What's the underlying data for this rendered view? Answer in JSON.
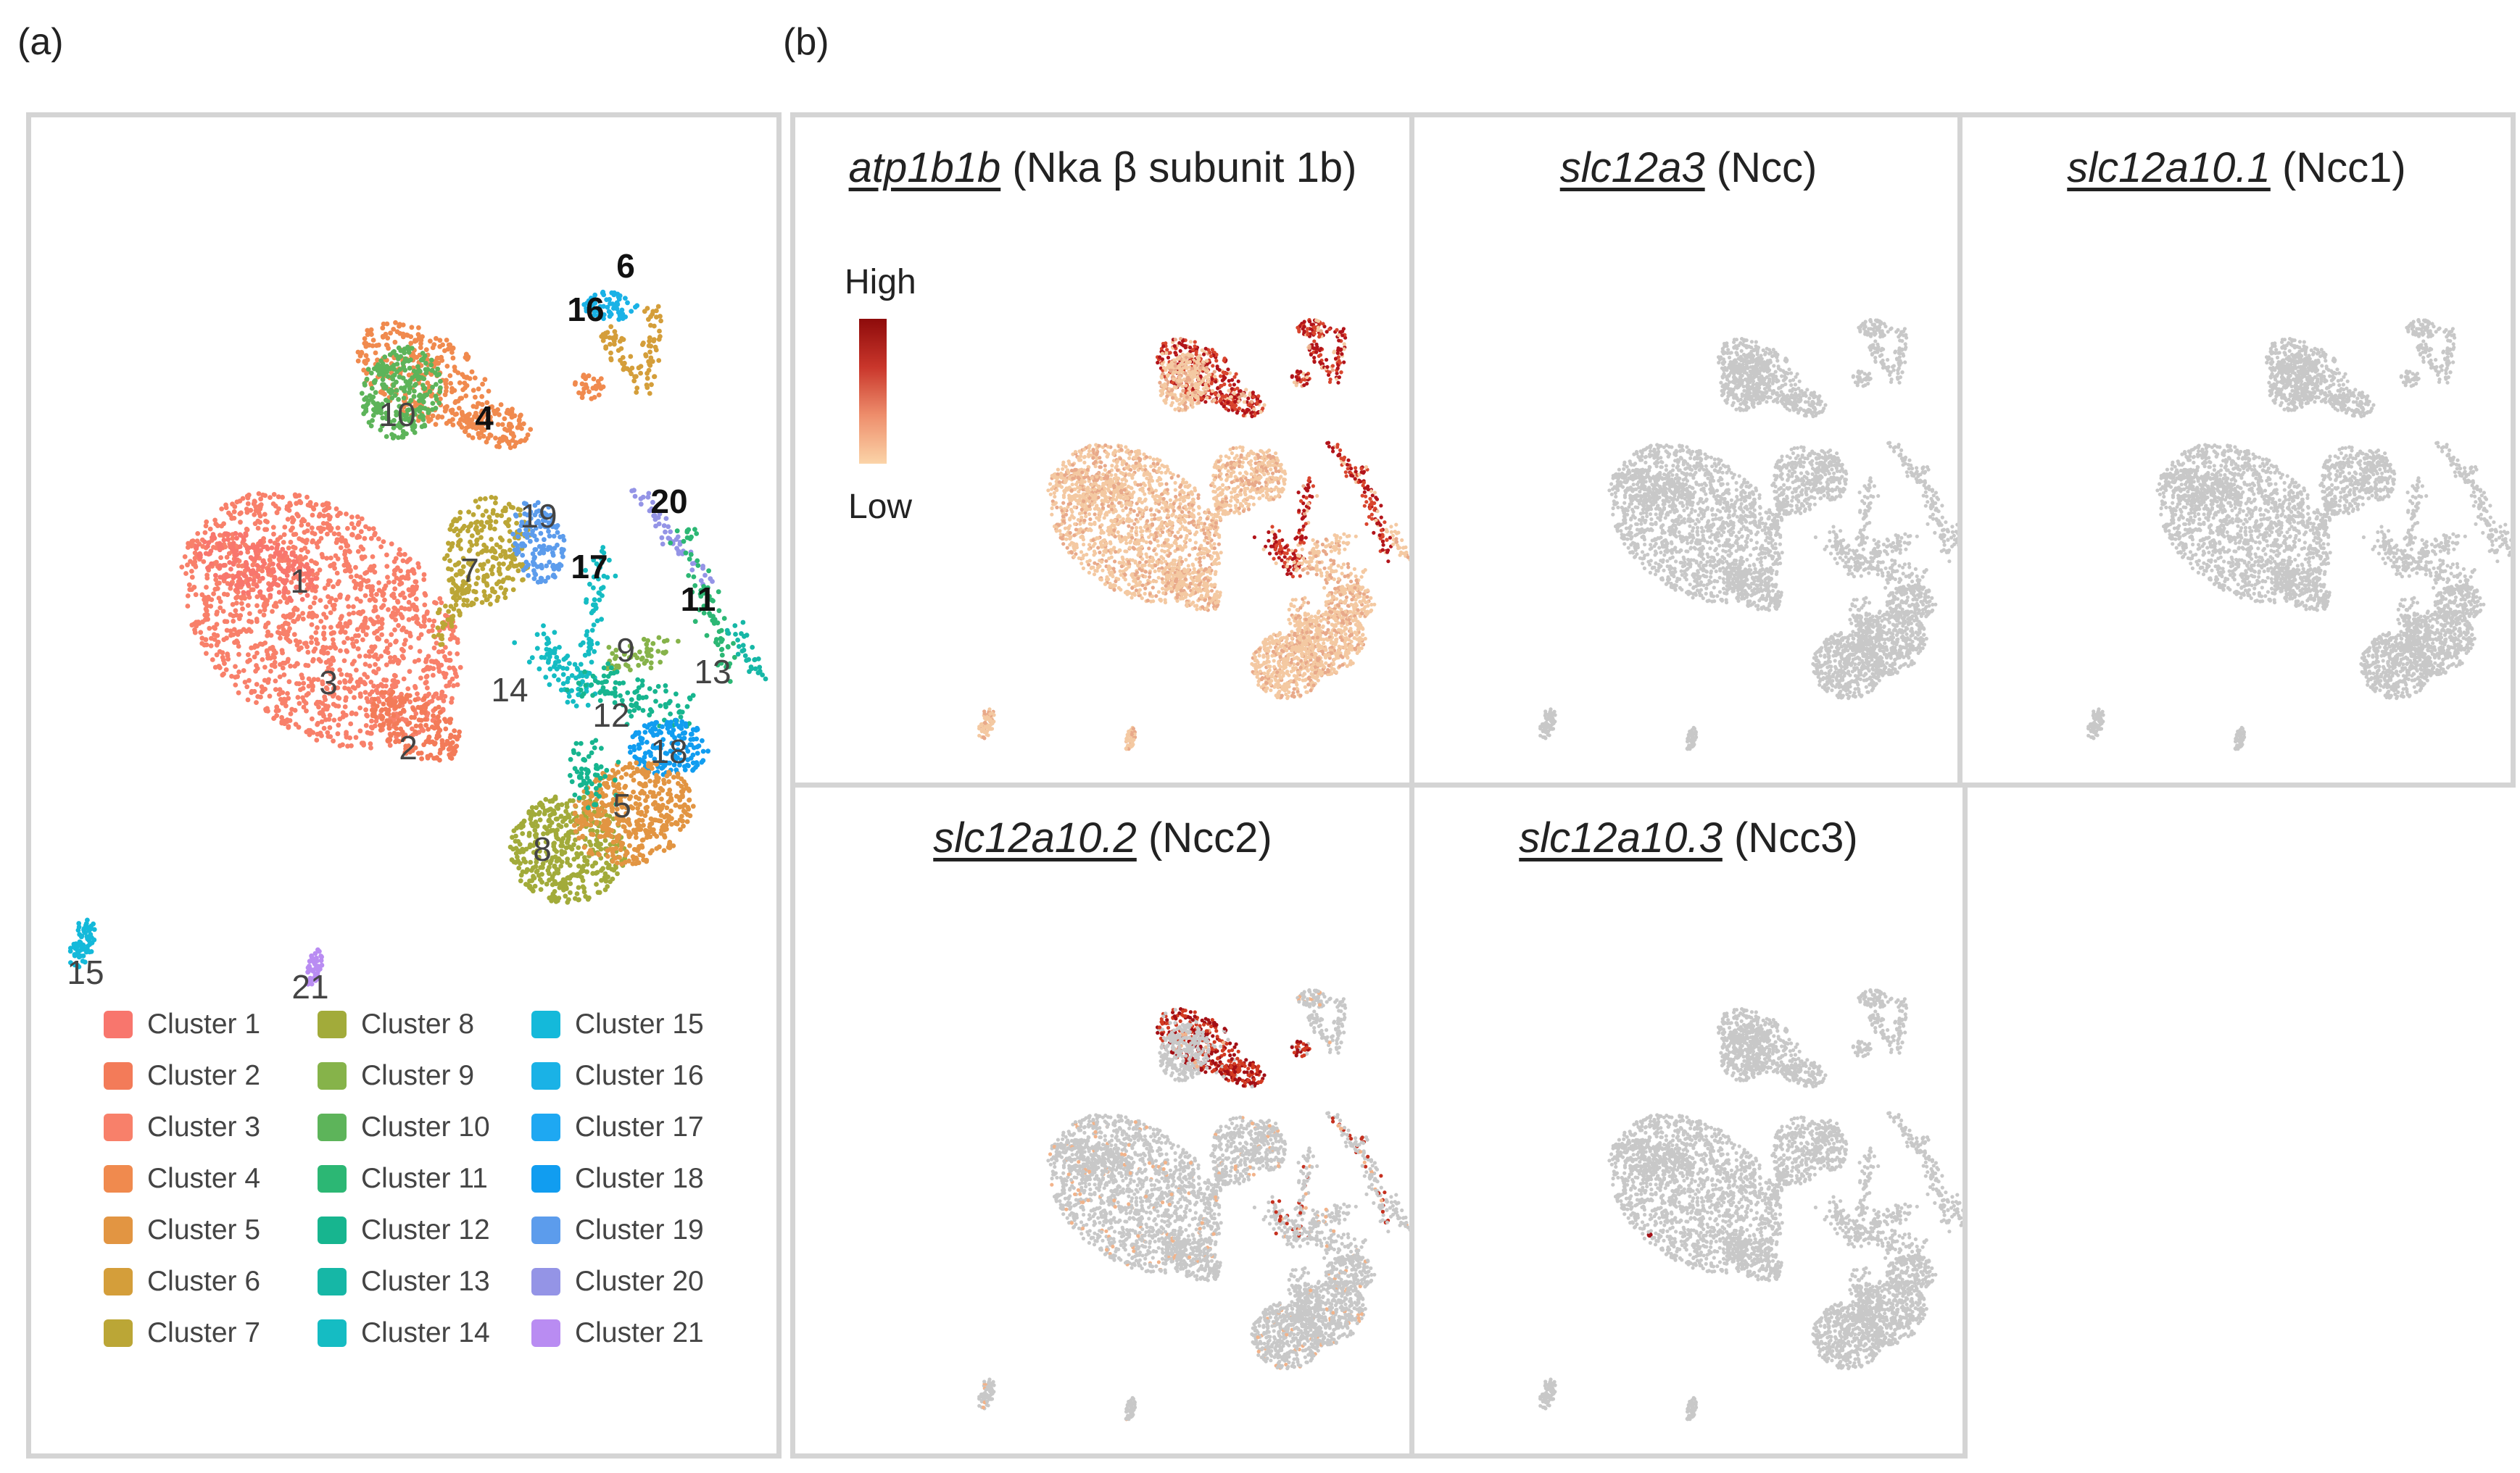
{
  "panels": {
    "a_letter": "(a)",
    "b_letter": "(b)"
  },
  "chart_data": [
    {
      "type": "scatter",
      "title": "",
      "description_role": "UMAP of cell clusters",
      "cluster_labels": [
        {
          "id": "1",
          "bold": false
        },
        {
          "id": "2",
          "bold": false
        },
        {
          "id": "3",
          "bold": false
        },
        {
          "id": "4",
          "bold": true
        },
        {
          "id": "5",
          "bold": false
        },
        {
          "id": "6",
          "bold": true
        },
        {
          "id": "7",
          "bold": false
        },
        {
          "id": "8",
          "bold": false
        },
        {
          "id": "9",
          "bold": false
        },
        {
          "id": "10",
          "bold": false
        },
        {
          "id": "11",
          "bold": true
        },
        {
          "id": "12",
          "bold": false
        },
        {
          "id": "13",
          "bold": false
        },
        {
          "id": "14",
          "bold": false
        },
        {
          "id": "15",
          "bold": false
        },
        {
          "id": "16",
          "bold": true
        },
        {
          "id": "17",
          "bold": true
        },
        {
          "id": "18",
          "bold": false
        },
        {
          "id": "19",
          "bold": false
        },
        {
          "id": "20",
          "bold": true
        },
        {
          "id": "21",
          "bold": false
        }
      ],
      "legend": [
        {
          "name": "Cluster 1",
          "color": "#F8766D"
        },
        {
          "name": "Cluster 2",
          "color": "#F37B59"
        },
        {
          "name": "Cluster 3",
          "color": "#F8806A"
        },
        {
          "name": "Cluster 4",
          "color": "#F08A4E"
        },
        {
          "name": "Cluster 5",
          "color": "#E29542"
        },
        {
          "name": "Cluster 6",
          "color": "#D49E3A"
        },
        {
          "name": "Cluster 7",
          "color": "#BBA636"
        },
        {
          "name": "Cluster 8",
          "color": "#A2AB3A"
        },
        {
          "name": "Cluster 9",
          "color": "#86B34A"
        },
        {
          "name": "Cluster 10",
          "color": "#5DB45A"
        },
        {
          "name": "Cluster 11",
          "color": "#2CB774"
        },
        {
          "name": "Cluster 12",
          "color": "#17B58F"
        },
        {
          "name": "Cluster 13",
          "color": "#16B7A6"
        },
        {
          "name": "Cluster 14",
          "color": "#15BCC3"
        },
        {
          "name": "Cluster 15",
          "color": "#14B9DA"
        },
        {
          "name": "Cluster 16",
          "color": "#1AB2E6"
        },
        {
          "name": "Cluster 17",
          "color": "#1EA8F2"
        },
        {
          "name": "Cluster 18",
          "color": "#119DF0"
        },
        {
          "name": "Cluster 19",
          "color": "#5C9CEC"
        },
        {
          "name": "Cluster 20",
          "color": "#9494E6"
        },
        {
          "name": "Cluster 21",
          "color": "#B98CF2"
        }
      ]
    },
    {
      "type": "scatter",
      "role": "feature-plot",
      "gene": "atp1b1b",
      "protein": "(Nka β subunit 1b)",
      "expression": "high in clusters 4, 6, 16, 11, 17, 20; low elsewhere",
      "scale": {
        "high": "High",
        "low": "Low",
        "high_color": "#9B0A0A",
        "low_color": "#F7C89A"
      }
    },
    {
      "type": "scatter",
      "role": "feature-plot",
      "gene": "slc12a3",
      "protein": "(Ncc)",
      "expression": "none"
    },
    {
      "type": "scatter",
      "role": "feature-plot",
      "gene": "slc12a10.1",
      "protein": "(Ncc1)",
      "expression": "none"
    },
    {
      "type": "scatter",
      "role": "feature-plot",
      "gene": "slc12a10.2",
      "protein": "(Ncc2)",
      "expression": "high in cluster 4; scattered in 11, 17"
    },
    {
      "type": "scatter",
      "role": "feature-plot",
      "gene": "slc12a10.3",
      "protein": "(Ncc3)",
      "expression": "single cell"
    }
  ],
  "colors": {
    "frame": "#d4d4d4",
    "grey_cell": "#C8C8C8",
    "high": "#A50F15",
    "low": "#F9C48E"
  }
}
